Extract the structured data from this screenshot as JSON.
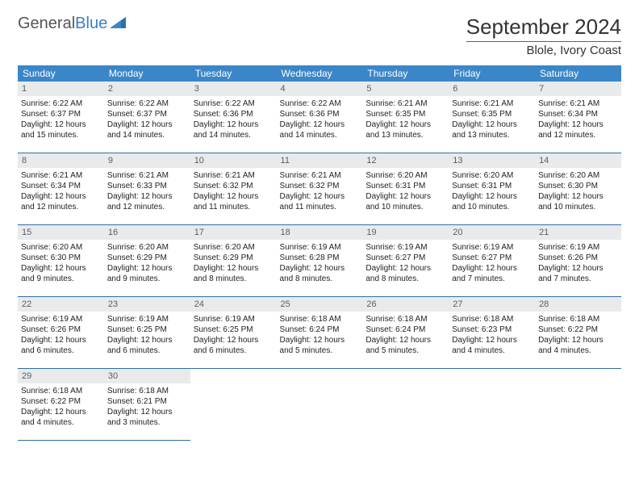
{
  "logo": {
    "part1": "General",
    "part2": "Blue"
  },
  "title": "September 2024",
  "location": "Blole, Ivory Coast",
  "colors": {
    "header_bg": "#3a86c8",
    "header_text": "#ffffff",
    "daynum_bg": "#e9eaeb",
    "daynum_text": "#5a5d60",
    "rule": "#2f6fa8",
    "body_text": "#222222"
  },
  "dow": [
    "Sunday",
    "Monday",
    "Tuesday",
    "Wednesday",
    "Thursday",
    "Friday",
    "Saturday"
  ],
  "weeks": [
    [
      {
        "n": "1",
        "sr": "Sunrise: 6:22 AM",
        "ss": "Sunset: 6:37 PM",
        "d1": "Daylight: 12 hours",
        "d2": "and 15 minutes."
      },
      {
        "n": "2",
        "sr": "Sunrise: 6:22 AM",
        "ss": "Sunset: 6:37 PM",
        "d1": "Daylight: 12 hours",
        "d2": "and 14 minutes."
      },
      {
        "n": "3",
        "sr": "Sunrise: 6:22 AM",
        "ss": "Sunset: 6:36 PM",
        "d1": "Daylight: 12 hours",
        "d2": "and 14 minutes."
      },
      {
        "n": "4",
        "sr": "Sunrise: 6:22 AM",
        "ss": "Sunset: 6:36 PM",
        "d1": "Daylight: 12 hours",
        "d2": "and 14 minutes."
      },
      {
        "n": "5",
        "sr": "Sunrise: 6:21 AM",
        "ss": "Sunset: 6:35 PM",
        "d1": "Daylight: 12 hours",
        "d2": "and 13 minutes."
      },
      {
        "n": "6",
        "sr": "Sunrise: 6:21 AM",
        "ss": "Sunset: 6:35 PM",
        "d1": "Daylight: 12 hours",
        "d2": "and 13 minutes."
      },
      {
        "n": "7",
        "sr": "Sunrise: 6:21 AM",
        "ss": "Sunset: 6:34 PM",
        "d1": "Daylight: 12 hours",
        "d2": "and 12 minutes."
      }
    ],
    [
      {
        "n": "8",
        "sr": "Sunrise: 6:21 AM",
        "ss": "Sunset: 6:34 PM",
        "d1": "Daylight: 12 hours",
        "d2": "and 12 minutes."
      },
      {
        "n": "9",
        "sr": "Sunrise: 6:21 AM",
        "ss": "Sunset: 6:33 PM",
        "d1": "Daylight: 12 hours",
        "d2": "and 12 minutes."
      },
      {
        "n": "10",
        "sr": "Sunrise: 6:21 AM",
        "ss": "Sunset: 6:32 PM",
        "d1": "Daylight: 12 hours",
        "d2": "and 11 minutes."
      },
      {
        "n": "11",
        "sr": "Sunrise: 6:21 AM",
        "ss": "Sunset: 6:32 PM",
        "d1": "Daylight: 12 hours",
        "d2": "and 11 minutes."
      },
      {
        "n": "12",
        "sr": "Sunrise: 6:20 AM",
        "ss": "Sunset: 6:31 PM",
        "d1": "Daylight: 12 hours",
        "d2": "and 10 minutes."
      },
      {
        "n": "13",
        "sr": "Sunrise: 6:20 AM",
        "ss": "Sunset: 6:31 PM",
        "d1": "Daylight: 12 hours",
        "d2": "and 10 minutes."
      },
      {
        "n": "14",
        "sr": "Sunrise: 6:20 AM",
        "ss": "Sunset: 6:30 PM",
        "d1": "Daylight: 12 hours",
        "d2": "and 10 minutes."
      }
    ],
    [
      {
        "n": "15",
        "sr": "Sunrise: 6:20 AM",
        "ss": "Sunset: 6:30 PM",
        "d1": "Daylight: 12 hours",
        "d2": "and 9 minutes."
      },
      {
        "n": "16",
        "sr": "Sunrise: 6:20 AM",
        "ss": "Sunset: 6:29 PM",
        "d1": "Daylight: 12 hours",
        "d2": "and 9 minutes."
      },
      {
        "n": "17",
        "sr": "Sunrise: 6:20 AM",
        "ss": "Sunset: 6:29 PM",
        "d1": "Daylight: 12 hours",
        "d2": "and 8 minutes."
      },
      {
        "n": "18",
        "sr": "Sunrise: 6:19 AM",
        "ss": "Sunset: 6:28 PM",
        "d1": "Daylight: 12 hours",
        "d2": "and 8 minutes."
      },
      {
        "n": "19",
        "sr": "Sunrise: 6:19 AM",
        "ss": "Sunset: 6:27 PM",
        "d1": "Daylight: 12 hours",
        "d2": "and 8 minutes."
      },
      {
        "n": "20",
        "sr": "Sunrise: 6:19 AM",
        "ss": "Sunset: 6:27 PM",
        "d1": "Daylight: 12 hours",
        "d2": "and 7 minutes."
      },
      {
        "n": "21",
        "sr": "Sunrise: 6:19 AM",
        "ss": "Sunset: 6:26 PM",
        "d1": "Daylight: 12 hours",
        "d2": "and 7 minutes."
      }
    ],
    [
      {
        "n": "22",
        "sr": "Sunrise: 6:19 AM",
        "ss": "Sunset: 6:26 PM",
        "d1": "Daylight: 12 hours",
        "d2": "and 6 minutes."
      },
      {
        "n": "23",
        "sr": "Sunrise: 6:19 AM",
        "ss": "Sunset: 6:25 PM",
        "d1": "Daylight: 12 hours",
        "d2": "and 6 minutes."
      },
      {
        "n": "24",
        "sr": "Sunrise: 6:19 AM",
        "ss": "Sunset: 6:25 PM",
        "d1": "Daylight: 12 hours",
        "d2": "and 6 minutes."
      },
      {
        "n": "25",
        "sr": "Sunrise: 6:18 AM",
        "ss": "Sunset: 6:24 PM",
        "d1": "Daylight: 12 hours",
        "d2": "and 5 minutes."
      },
      {
        "n": "26",
        "sr": "Sunrise: 6:18 AM",
        "ss": "Sunset: 6:24 PM",
        "d1": "Daylight: 12 hours",
        "d2": "and 5 minutes."
      },
      {
        "n": "27",
        "sr": "Sunrise: 6:18 AM",
        "ss": "Sunset: 6:23 PM",
        "d1": "Daylight: 12 hours",
        "d2": "and 4 minutes."
      },
      {
        "n": "28",
        "sr": "Sunrise: 6:18 AM",
        "ss": "Sunset: 6:22 PM",
        "d1": "Daylight: 12 hours",
        "d2": "and 4 minutes."
      }
    ],
    [
      {
        "n": "29",
        "sr": "Sunrise: 6:18 AM",
        "ss": "Sunset: 6:22 PM",
        "d1": "Daylight: 12 hours",
        "d2": "and 4 minutes."
      },
      {
        "n": "30",
        "sr": "Sunrise: 6:18 AM",
        "ss": "Sunset: 6:21 PM",
        "d1": "Daylight: 12 hours",
        "d2": "and 3 minutes."
      },
      null,
      null,
      null,
      null,
      null
    ]
  ]
}
